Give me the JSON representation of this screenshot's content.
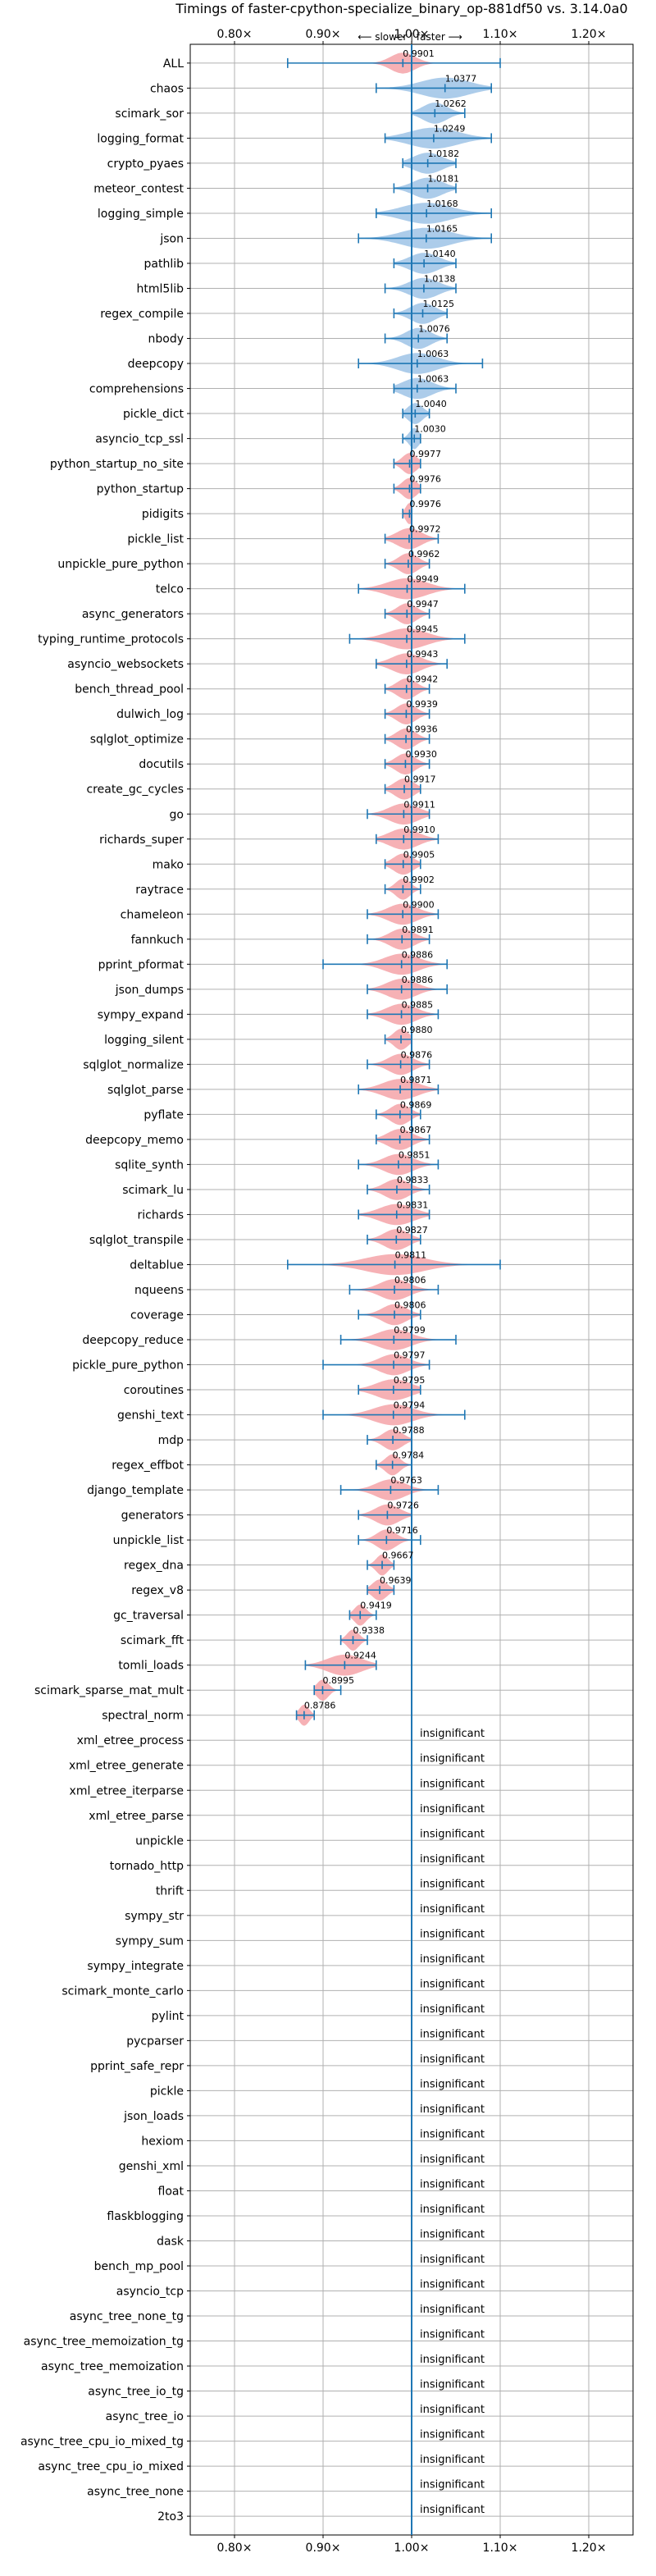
{
  "chart_data": {
    "type": "violin",
    "title": "Timings of faster-cpython-specialize_binary_op-881df50 vs. 3.14.0a0",
    "direction_label": "⟵ slower | faster ⟶",
    "xlim": [
      0.75,
      1.25
    ],
    "x_ticks": [
      {
        "value": 0.8,
        "label": "0.80×"
      },
      {
        "value": 0.9,
        "label": "0.90×"
      },
      {
        "value": 1.0,
        "label": "1.00×"
      },
      {
        "value": 1.1,
        "label": "1.10×"
      },
      {
        "value": 1.2,
        "label": "1.20×"
      }
    ],
    "reference_line": 1.0,
    "grid": true,
    "colors": {
      "faster": "#9dc3e6",
      "slower": "#f4a3a8",
      "line": "#1f77b4",
      "grid": "#b0b0b0"
    },
    "benchmarks": [
      {
        "name": "ALL",
        "value": 0.9901,
        "label": "0.9901",
        "low": 0.86,
        "high": 1.1,
        "spread": 0.025,
        "sig": true
      },
      {
        "name": "chaos",
        "value": 1.0377,
        "label": "1.0377",
        "low": 0.96,
        "high": 1.09,
        "spread": 0.05,
        "sig": true
      },
      {
        "name": "scimark_sor",
        "value": 1.0262,
        "label": "1.0262",
        "low": 1.0,
        "high": 1.06,
        "spread": 0.025,
        "sig": true
      },
      {
        "name": "logging_format",
        "value": 1.0249,
        "label": "1.0249",
        "low": 0.97,
        "high": 1.09,
        "spread": 0.05,
        "sig": true
      },
      {
        "name": "crypto_pyaes",
        "value": 1.0182,
        "label": "1.0182",
        "low": 0.99,
        "high": 1.05,
        "spread": 0.03,
        "sig": true
      },
      {
        "name": "meteor_contest",
        "value": 1.0181,
        "label": "1.0181",
        "low": 0.98,
        "high": 1.05,
        "spread": 0.03,
        "sig": true
      },
      {
        "name": "logging_simple",
        "value": 1.0168,
        "label": "1.0168",
        "low": 0.96,
        "high": 1.09,
        "spread": 0.05,
        "sig": true
      },
      {
        "name": "json",
        "value": 1.0165,
        "label": "1.0165",
        "low": 0.94,
        "high": 1.09,
        "spread": 0.05,
        "sig": true
      },
      {
        "name": "pathlib",
        "value": 1.014,
        "label": "1.0140",
        "low": 0.98,
        "high": 1.05,
        "spread": 0.03,
        "sig": true
      },
      {
        "name": "html5lib",
        "value": 1.0138,
        "label": "1.0138",
        "low": 0.97,
        "high": 1.05,
        "spread": 0.03,
        "sig": true
      },
      {
        "name": "regex_compile",
        "value": 1.0125,
        "label": "1.0125",
        "low": 0.98,
        "high": 1.04,
        "spread": 0.025,
        "sig": true
      },
      {
        "name": "nbody",
        "value": 1.0076,
        "label": "1.0076",
        "low": 0.97,
        "high": 1.04,
        "spread": 0.025,
        "sig": true
      },
      {
        "name": "deepcopy",
        "value": 1.0063,
        "label": "1.0063",
        "low": 0.94,
        "high": 1.08,
        "spread": 0.04,
        "sig": true
      },
      {
        "name": "comprehensions",
        "value": 1.0063,
        "label": "1.0063",
        "low": 0.98,
        "high": 1.05,
        "spread": 0.03,
        "sig": true
      },
      {
        "name": "pickle_dict",
        "value": 1.004,
        "label": "1.0040",
        "low": 0.99,
        "high": 1.02,
        "spread": 0.015,
        "sig": true
      },
      {
        "name": "asyncio_tcp_ssl",
        "value": 1.003,
        "label": "1.0030",
        "low": 0.99,
        "high": 1.01,
        "spread": 0.01,
        "sig": true
      },
      {
        "name": "python_startup_no_site",
        "value": 0.9977,
        "label": "0.9977",
        "low": 0.98,
        "high": 1.01,
        "spread": 0.015,
        "sig": true
      },
      {
        "name": "python_startup",
        "value": 0.9976,
        "label": "0.9976",
        "low": 0.98,
        "high": 1.01,
        "spread": 0.015,
        "sig": true
      },
      {
        "name": "pidigits",
        "value": 0.9976,
        "label": "0.9976",
        "low": 0.99,
        "high": 1.0,
        "spread": 0.008,
        "sig": true
      },
      {
        "name": "pickle_list",
        "value": 0.9972,
        "label": "0.9972",
        "low": 0.97,
        "high": 1.03,
        "spread": 0.025,
        "sig": true
      },
      {
        "name": "unpickle_pure_python",
        "value": 0.9962,
        "label": "0.9962",
        "low": 0.97,
        "high": 1.02,
        "spread": 0.02,
        "sig": true
      },
      {
        "name": "telco",
        "value": 0.9949,
        "label": "0.9949",
        "low": 0.94,
        "high": 1.06,
        "spread": 0.04,
        "sig": true
      },
      {
        "name": "async_generators",
        "value": 0.9947,
        "label": "0.9947",
        "low": 0.97,
        "high": 1.02,
        "spread": 0.02,
        "sig": true
      },
      {
        "name": "typing_runtime_protocols",
        "value": 0.9945,
        "label": "0.9945",
        "low": 0.93,
        "high": 1.06,
        "spread": 0.04,
        "sig": true
      },
      {
        "name": "asyncio_websockets",
        "value": 0.9943,
        "label": "0.9943",
        "low": 0.96,
        "high": 1.04,
        "spread": 0.03,
        "sig": true
      },
      {
        "name": "bench_thread_pool",
        "value": 0.9942,
        "label": "0.9942",
        "low": 0.97,
        "high": 1.02,
        "spread": 0.02,
        "sig": true
      },
      {
        "name": "dulwich_log",
        "value": 0.9939,
        "label": "0.9939",
        "low": 0.97,
        "high": 1.02,
        "spread": 0.02,
        "sig": true
      },
      {
        "name": "sqlglot_optimize",
        "value": 0.9936,
        "label": "0.9936",
        "low": 0.97,
        "high": 1.02,
        "spread": 0.02,
        "sig": true
      },
      {
        "name": "docutils",
        "value": 0.993,
        "label": "0.9930",
        "low": 0.97,
        "high": 1.02,
        "spread": 0.02,
        "sig": true
      },
      {
        "name": "create_gc_cycles",
        "value": 0.9917,
        "label": "0.9917",
        "low": 0.97,
        "high": 1.01,
        "spread": 0.02,
        "sig": true
      },
      {
        "name": "go",
        "value": 0.9911,
        "label": "0.9911",
        "low": 0.95,
        "high": 1.02,
        "spread": 0.03,
        "sig": true
      },
      {
        "name": "richards_super",
        "value": 0.991,
        "label": "0.9910",
        "low": 0.96,
        "high": 1.03,
        "spread": 0.03,
        "sig": true
      },
      {
        "name": "mako",
        "value": 0.9905,
        "label": "0.9905",
        "low": 0.97,
        "high": 1.01,
        "spread": 0.02,
        "sig": true
      },
      {
        "name": "raytrace",
        "value": 0.9902,
        "label": "0.9902",
        "low": 0.97,
        "high": 1.01,
        "spread": 0.015,
        "sig": true
      },
      {
        "name": "chameleon",
        "value": 0.99,
        "label": "0.9900",
        "low": 0.95,
        "high": 1.03,
        "spread": 0.03,
        "sig": true
      },
      {
        "name": "fannkuch",
        "value": 0.9891,
        "label": "0.9891",
        "low": 0.95,
        "high": 1.02,
        "spread": 0.025,
        "sig": true
      },
      {
        "name": "pprint_pformat",
        "value": 0.9886,
        "label": "0.9886",
        "low": 0.9,
        "high": 1.04,
        "spread": 0.035,
        "sig": true
      },
      {
        "name": "json_dumps",
        "value": 0.9886,
        "label": "0.9886",
        "low": 0.95,
        "high": 1.04,
        "spread": 0.03,
        "sig": true
      },
      {
        "name": "sympy_expand",
        "value": 0.9885,
        "label": "0.9885",
        "low": 0.95,
        "high": 1.03,
        "spread": 0.03,
        "sig": true
      },
      {
        "name": "logging_silent",
        "value": 0.988,
        "label": "0.9880",
        "low": 0.97,
        "high": 1.0,
        "spread": 0.015,
        "sig": true
      },
      {
        "name": "sqlglot_normalize",
        "value": 0.9876,
        "label": "0.9876",
        "low": 0.95,
        "high": 1.02,
        "spread": 0.025,
        "sig": true
      },
      {
        "name": "sqlglot_parse",
        "value": 0.9871,
        "label": "0.9871",
        "low": 0.94,
        "high": 1.03,
        "spread": 0.035,
        "sig": true
      },
      {
        "name": "pyflate",
        "value": 0.9869,
        "label": "0.9869",
        "low": 0.96,
        "high": 1.01,
        "spread": 0.02,
        "sig": true
      },
      {
        "name": "deepcopy_memo",
        "value": 0.9867,
        "label": "0.9867",
        "low": 0.96,
        "high": 1.02,
        "spread": 0.025,
        "sig": true
      },
      {
        "name": "sqlite_synth",
        "value": 0.9851,
        "label": "0.9851",
        "low": 0.94,
        "high": 1.03,
        "spread": 0.03,
        "sig": true
      },
      {
        "name": "scimark_lu",
        "value": 0.9833,
        "label": "0.9833",
        "low": 0.95,
        "high": 1.02,
        "spread": 0.025,
        "sig": true
      },
      {
        "name": "richards",
        "value": 0.9831,
        "label": "0.9831",
        "low": 0.94,
        "high": 1.02,
        "spread": 0.035,
        "sig": true
      },
      {
        "name": "sqlglot_transpile",
        "value": 0.9827,
        "label": "0.9827",
        "low": 0.95,
        "high": 1.01,
        "spread": 0.025,
        "sig": true
      },
      {
        "name": "deltablue",
        "value": 0.9811,
        "label": "0.9811",
        "low": 0.86,
        "high": 1.1,
        "spread": 0.06,
        "sig": true
      },
      {
        "name": "nqueens",
        "value": 0.9806,
        "label": "0.9806",
        "low": 0.93,
        "high": 1.03,
        "spread": 0.03,
        "sig": true
      },
      {
        "name": "coverage",
        "value": 0.9806,
        "label": "0.9806",
        "low": 0.94,
        "high": 1.01,
        "spread": 0.025,
        "sig": true
      },
      {
        "name": "deepcopy_reduce",
        "value": 0.9799,
        "label": "0.9799",
        "low": 0.92,
        "high": 1.05,
        "spread": 0.035,
        "sig": true
      },
      {
        "name": "pickle_pure_python",
        "value": 0.9797,
        "label": "0.9797",
        "low": 0.9,
        "high": 1.02,
        "spread": 0.03,
        "sig": true
      },
      {
        "name": "coroutines",
        "value": 0.9795,
        "label": "0.9795",
        "low": 0.94,
        "high": 1.01,
        "spread": 0.035,
        "sig": true
      },
      {
        "name": "genshi_text",
        "value": 0.9794,
        "label": "0.9794",
        "low": 0.9,
        "high": 1.06,
        "spread": 0.04,
        "sig": true
      },
      {
        "name": "mdp",
        "value": 0.9788,
        "label": "0.9788",
        "low": 0.95,
        "high": 1.0,
        "spread": 0.02,
        "sig": true
      },
      {
        "name": "regex_effbot",
        "value": 0.9784,
        "label": "0.9784",
        "low": 0.96,
        "high": 1.0,
        "spread": 0.015,
        "sig": true
      },
      {
        "name": "django_template",
        "value": 0.9763,
        "label": "0.9763",
        "low": 0.92,
        "high": 1.03,
        "spread": 0.03,
        "sig": true
      },
      {
        "name": "generators",
        "value": 0.9726,
        "label": "0.9726",
        "low": 0.94,
        "high": 1.0,
        "spread": 0.025,
        "sig": true
      },
      {
        "name": "unpickle_list",
        "value": 0.9716,
        "label": "0.9716",
        "low": 0.94,
        "high": 1.01,
        "spread": 0.02,
        "sig": true
      },
      {
        "name": "regex_dna",
        "value": 0.9667,
        "label": "0.9667",
        "low": 0.95,
        "high": 0.98,
        "spread": 0.012,
        "sig": true
      },
      {
        "name": "regex_v8",
        "value": 0.9639,
        "label": "0.9639",
        "low": 0.95,
        "high": 0.98,
        "spread": 0.015,
        "sig": true
      },
      {
        "name": "gc_traversal",
        "value": 0.9419,
        "label": "0.9419",
        "low": 0.93,
        "high": 0.96,
        "spread": 0.012,
        "sig": true
      },
      {
        "name": "scimark_fft",
        "value": 0.9338,
        "label": "0.9338",
        "low": 0.92,
        "high": 0.95,
        "spread": 0.012,
        "sig": true
      },
      {
        "name": "tomli_loads",
        "value": 0.9244,
        "label": "0.9244",
        "low": 0.88,
        "high": 0.96,
        "spread": 0.035,
        "sig": true
      },
      {
        "name": "scimark_sparse_mat_mult",
        "value": 0.8995,
        "label": "0.8995",
        "low": 0.89,
        "high": 0.92,
        "spread": 0.012,
        "sig": true
      },
      {
        "name": "spectral_norm",
        "value": 0.8786,
        "label": "0.8786",
        "low": 0.87,
        "high": 0.89,
        "spread": 0.01,
        "sig": true
      },
      {
        "name": "xml_etree_process",
        "label": "insignificant",
        "sig": false
      },
      {
        "name": "xml_etree_generate",
        "label": "insignificant",
        "sig": false
      },
      {
        "name": "xml_etree_iterparse",
        "label": "insignificant",
        "sig": false
      },
      {
        "name": "xml_etree_parse",
        "label": "insignificant",
        "sig": false
      },
      {
        "name": "unpickle",
        "label": "insignificant",
        "sig": false
      },
      {
        "name": "tornado_http",
        "label": "insignificant",
        "sig": false
      },
      {
        "name": "thrift",
        "label": "insignificant",
        "sig": false
      },
      {
        "name": "sympy_str",
        "label": "insignificant",
        "sig": false
      },
      {
        "name": "sympy_sum",
        "label": "insignificant",
        "sig": false
      },
      {
        "name": "sympy_integrate",
        "label": "insignificant",
        "sig": false
      },
      {
        "name": "scimark_monte_carlo",
        "label": "insignificant",
        "sig": false
      },
      {
        "name": "pylint",
        "label": "insignificant",
        "sig": false
      },
      {
        "name": "pycparser",
        "label": "insignificant",
        "sig": false
      },
      {
        "name": "pprint_safe_repr",
        "label": "insignificant",
        "sig": false
      },
      {
        "name": "pickle",
        "label": "insignificant",
        "sig": false
      },
      {
        "name": "json_loads",
        "label": "insignificant",
        "sig": false
      },
      {
        "name": "hexiom",
        "label": "insignificant",
        "sig": false
      },
      {
        "name": "genshi_xml",
        "label": "insignificant",
        "sig": false
      },
      {
        "name": "float",
        "label": "insignificant",
        "sig": false
      },
      {
        "name": "flaskblogging",
        "label": "insignificant",
        "sig": false
      },
      {
        "name": "dask",
        "label": "insignificant",
        "sig": false
      },
      {
        "name": "bench_mp_pool",
        "label": "insignificant",
        "sig": false
      },
      {
        "name": "asyncio_tcp",
        "label": "insignificant",
        "sig": false
      },
      {
        "name": "async_tree_none_tg",
        "label": "insignificant",
        "sig": false
      },
      {
        "name": "async_tree_memoization_tg",
        "label": "insignificant",
        "sig": false
      },
      {
        "name": "async_tree_memoization",
        "label": "insignificant",
        "sig": false
      },
      {
        "name": "async_tree_io_tg",
        "label": "insignificant",
        "sig": false
      },
      {
        "name": "async_tree_io",
        "label": "insignificant",
        "sig": false
      },
      {
        "name": "async_tree_cpu_io_mixed_tg",
        "label": "insignificant",
        "sig": false
      },
      {
        "name": "async_tree_cpu_io_mixed",
        "label": "insignificant",
        "sig": false
      },
      {
        "name": "async_tree_none",
        "label": "insignificant",
        "sig": false
      },
      {
        "name": "2to3",
        "label": "insignificant",
        "sig": false
      }
    ]
  }
}
